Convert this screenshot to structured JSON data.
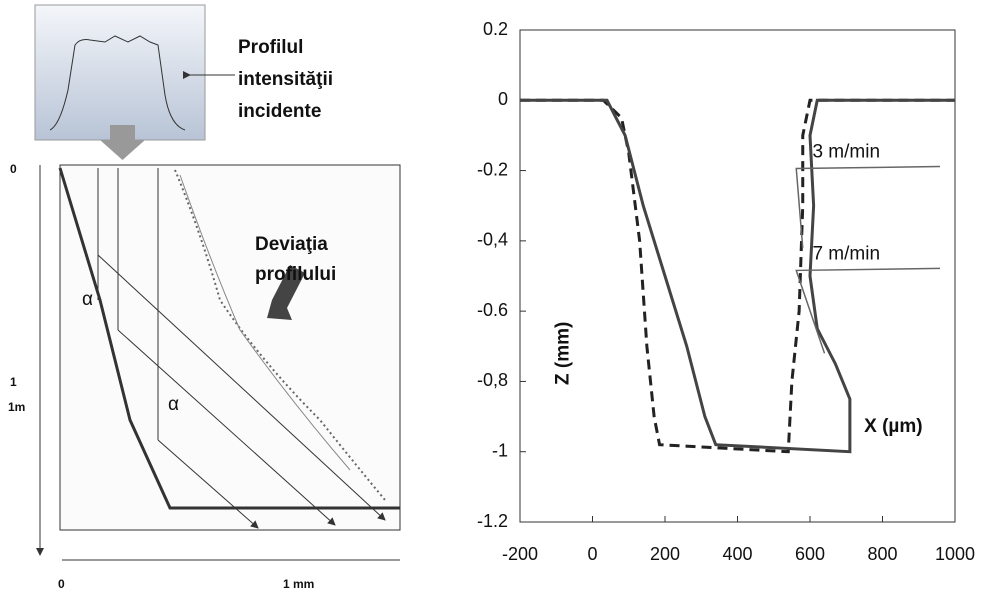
{
  "chart_data": {
    "type": "line",
    "x_label": "X (µm)",
    "y_label": "Z (mm)",
    "xlim": [
      -200,
      1000
    ],
    "xticks": [
      -200,
      0,
      200,
      400,
      600,
      800,
      1000
    ],
    "ylim": [
      -1.2,
      0.2
    ],
    "yticks": [
      -1.2,
      {
        "value": -1,
        "label": "-1"
      },
      {
        "value": -0.8,
        "label": "-0,8"
      },
      -0.6,
      {
        "value": -0.4,
        "label": "-0,4"
      },
      -0.2,
      0,
      0.2
    ],
    "annotations": [
      "3 m/min",
      "7 m/min"
    ],
    "series": [
      {
        "color": "#222222",
        "dash": true,
        "x": [
          -200,
          30,
          80,
          100,
          130,
          150,
          170,
          185,
          540,
          550,
          570,
          580,
          580,
          600,
          1000
        ],
        "values": [
          0,
          0,
          -0.05,
          -0.15,
          -0.4,
          -0.7,
          -0.9,
          -0.98,
          -1,
          -0.8,
          -0.6,
          -0.3,
          -0.1,
          0,
          0
        ]
      },
      {
        "color": "#444444",
        "dash": false,
        "x": [
          -200,
          40,
          90,
          140,
          200,
          260,
          310,
          340,
          710,
          710,
          670,
          620,
          600,
          610,
          600,
          620,
          1000
        ],
        "values": [
          0,
          0,
          -0.1,
          -0.3,
          -0.5,
          -0.7,
          -0.9,
          -0.98,
          -1,
          -0.85,
          -0.75,
          -0.65,
          -0.5,
          -0.3,
          -0.1,
          0,
          0
        ]
      }
    ]
  },
  "diagram": {
    "inset_label": [
      "Profilul",
      "intensităţii",
      "incidente"
    ],
    "deviation_label": [
      "Deviaţia",
      "profilului"
    ],
    "angle_labels": [
      "α",
      "α"
    ],
    "y_axis_labels": [
      "0",
      "1",
      "1m"
    ],
    "x_axis_labels": [
      "0",
      "1 mm"
    ]
  }
}
